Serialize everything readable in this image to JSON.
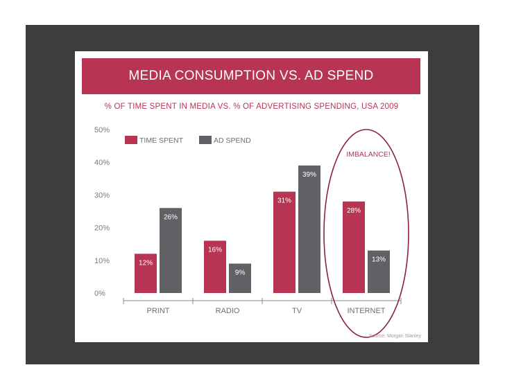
{
  "colors": {
    "frame": "#3d3d3d",
    "accent": "#b73453",
    "series_time": "#b73453",
    "series_ad": "#5f6165",
    "axis_text": "#7a7a7a"
  },
  "slide": {
    "title": "MEDIA CONSUMPTION VS. AD SPEND",
    "subtitle": "% OF TIME SPENT IN MEDIA VS. % OF ADVERTISING SPENDING, USA 2009",
    "source": "Source: Morgan Stanley",
    "annotation": "IMBALANCE!"
  },
  "chart_data": {
    "type": "bar",
    "title": "MEDIA CONSUMPTION VS. AD SPEND",
    "subtitle": "% OF TIME SPENT IN MEDIA VS. % OF ADVERTISING SPENDING, USA 2009",
    "categories": [
      "PRINT",
      "RADIO",
      "TV",
      "INTERNET"
    ],
    "series": [
      {
        "name": "TIME SPENT",
        "values": [
          12,
          16,
          31,
          28
        ],
        "labels": [
          "12%",
          "16%",
          "31%",
          "28%"
        ]
      },
      {
        "name": "AD SPEND",
        "values": [
          26,
          9,
          39,
          13
        ],
        "labels": [
          "26%",
          "9%",
          "39%",
          "13%"
        ]
      }
    ],
    "ylim": [
      0,
      50
    ],
    "yticks": [
      0,
      10,
      20,
      30,
      40,
      50
    ],
    "ytick_labels": [
      "0%",
      "10%",
      "20%",
      "30%",
      "40%",
      "50%"
    ],
    "grid": false,
    "legend": "top-left",
    "annotation": {
      "text": "IMBALANCE!",
      "category": "INTERNET",
      "shape": "ellipse"
    }
  }
}
